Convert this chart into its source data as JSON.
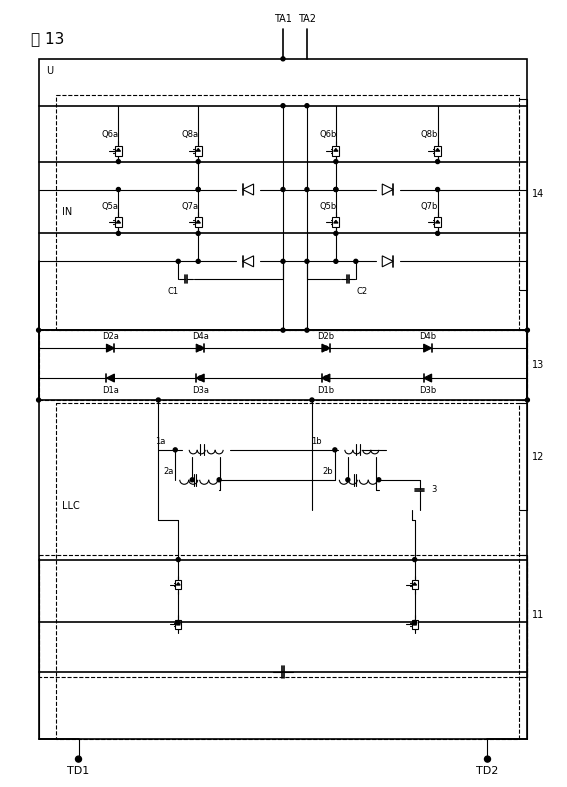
{
  "title": "図 13",
  "fig_width": 5.67,
  "fig_height": 7.87,
  "dpi": 100,
  "labels": {
    "title": "図 13",
    "TA1": "TA1",
    "TA2": "TA2",
    "U": "U",
    "IN": "IN",
    "LLC": "LLC",
    "TD1": "TD1",
    "TD2": "TD2",
    "Q6a": "Q6a",
    "Q8a": "Q8a",
    "Q6b": "Q6b",
    "Q8b": "Q8b",
    "Q5a": "Q5a",
    "Q7a": "Q7a",
    "Q5b": "Q5b",
    "Q7b": "Q7b",
    "C1": "C1",
    "C2": "C2",
    "D2a": "D2a",
    "D4a": "D4a",
    "D2b": "D2b",
    "D4b": "D4b",
    "D1a": "D1a",
    "D3a": "D3a",
    "D1b": "D1b",
    "D3b": "D3b",
    "1a": "1a",
    "1b": "1b",
    "2a": "2a",
    "2b": "2b",
    "3": "3",
    "11": "11",
    "12": "12",
    "13": "13",
    "14": "14"
  }
}
